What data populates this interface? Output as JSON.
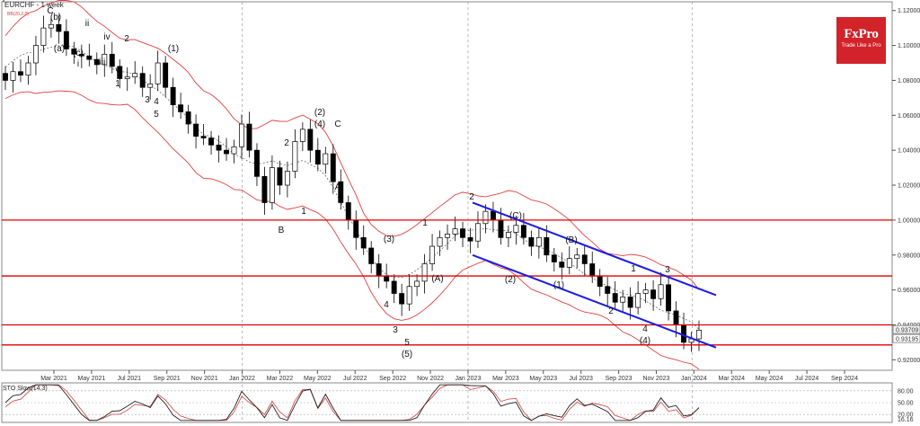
{
  "header": {
    "symbol": "EURCHF - 1 week",
    "indicator_note": "BB(20,2.0)"
  },
  "logo": {
    "brand": "FxPro",
    "tagline": "Trade Like a Pro"
  },
  "colors": {
    "candle": "#000000",
    "band": "#e04040",
    "mid": "#555555",
    "level": "#e00000",
    "channel": "#1a1ae6",
    "grid": "#aaaaaa",
    "sto_main": "#222222",
    "sto_signal": "#d04040"
  },
  "chart_data": {
    "type": "candlestick",
    "title": "EURCHF - 1 week",
    "ylim": [
      0.914,
      1.125
    ],
    "y_ticks": [
      "1.12000",
      "1.10000",
      "1.08000",
      "1.06000",
      "1.04000",
      "1.02000",
      "1.00000",
      "0.98000",
      "0.96000",
      "0.94000",
      "0.92000"
    ],
    "price_labels": [
      "0.93709",
      "0.93195"
    ],
    "x_ticks": [
      "Mar 2021",
      "May 2021",
      "Jul 2021",
      "Sep 2021",
      "Nov 2021",
      "Jan 2022",
      "Mar 2022",
      "May 2022",
      "Jul 2022",
      "Sep 2022",
      "Nov 2022",
      "Jan 2023",
      "Mar 2023",
      "May 2023",
      "Jul 2023",
      "Sep 2023",
      "Nov 2023",
      "Jan 2024",
      "Mar 2024",
      "May 2024",
      "Jul 2024",
      "Sep 2024"
    ],
    "close_path": [
      1.08,
      1.085,
      1.083,
      1.09,
      1.1,
      1.11,
      1.112,
      1.108,
      1.098,
      1.095,
      1.094,
      1.092,
      1.089,
      1.095,
      1.088,
      1.081,
      1.082,
      1.084,
      1.076,
      1.078,
      1.09,
      1.076,
      1.066,
      1.062,
      1.055,
      1.048,
      1.047,
      1.043,
      1.04,
      1.038,
      1.042,
      1.055,
      1.04,
      1.025,
      1.01,
      1.03,
      1.02,
      1.028,
      1.045,
      1.052,
      1.04,
      1.032,
      1.038,
      1.022,
      1.01,
      1.0,
      0.99,
      0.984,
      0.975,
      0.968,
      0.965,
      0.958,
      0.952,
      0.962,
      0.965,
      0.975,
      0.985,
      0.99,
      0.992,
      0.995,
      0.99,
      0.988,
      0.998,
      1.005,
      1.0,
      0.99,
      0.993,
      0.997,
      0.99,
      0.985,
      0.99,
      0.98,
      0.976,
      0.973,
      0.978,
      0.98,
      0.975,
      0.968,
      0.962,
      0.958,
      0.953,
      0.956,
      0.95,
      0.958,
      0.96,
      0.955,
      0.963,
      0.948,
      0.94,
      0.93,
      0.932,
      0.937
    ],
    "levels": [
      1.0,
      0.968,
      0.94,
      0.9285
    ],
    "wave_labels": [
      "C",
      "(b)",
      "(a)",
      "(c)",
      "ii",
      "i",
      "iii",
      "iv",
      "v",
      "2",
      "1",
      "3",
      "4",
      "5",
      "(1)",
      "(2)",
      "(4)",
      "C",
      "2",
      "A",
      "1",
      "B",
      "(3)",
      "4",
      "3",
      "5",
      "(5)",
      "1",
      "(A)",
      "(B)",
      "2",
      "(C)",
      "(2)",
      "(1)",
      "2",
      "1",
      "3",
      "4",
      "(4)",
      "5",
      "(3)"
    ],
    "indicator": {
      "name": "STO Slow(14,3)",
      "ylim": [
        0,
        100
      ],
      "levels": [
        "80.00",
        "50.00",
        "20.00"
      ],
      "current_value": "16.16"
    }
  }
}
